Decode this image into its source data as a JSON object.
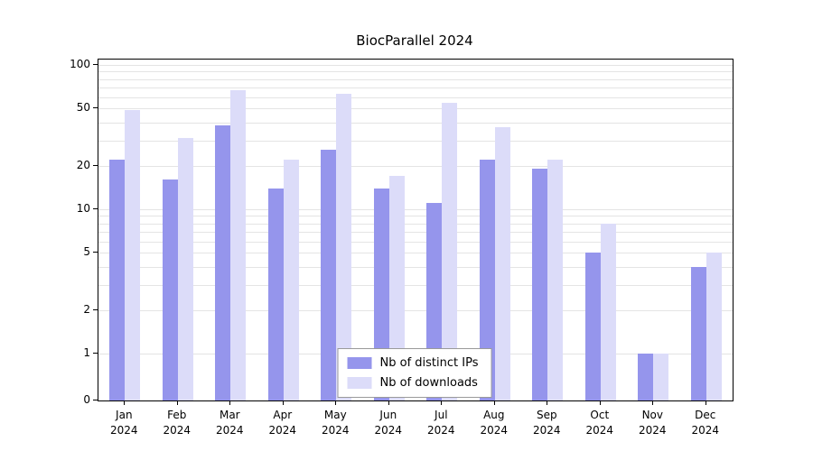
{
  "chart_data": {
    "type": "bar",
    "title": "BiocParallel 2024",
    "categories": [
      "Jan 2024",
      "Feb 2024",
      "Mar 2024",
      "Apr 2024",
      "May 2024",
      "Jun 2024",
      "Jul 2024",
      "Aug 2024",
      "Sep 2024",
      "Oct 2024",
      "Nov 2024",
      "Dec 2024"
    ],
    "series": [
      {
        "name": "Nb of distinct IPs",
        "color": "#9595ec",
        "values": [
          22,
          16,
          38,
          14,
          26,
          14,
          11,
          22,
          19,
          5,
          1,
          4
        ]
      },
      {
        "name": "Nb of downloads",
        "color": "#dcdcf9",
        "values": [
          49,
          31,
          67,
          22,
          63,
          17,
          55,
          37,
          22,
          8,
          1,
          5
        ]
      }
    ],
    "y_ticks": [
      0,
      1,
      2,
      5,
      10,
      20,
      50,
      100
    ],
    "y_minor_gridlines": [
      1,
      2,
      3,
      4,
      5,
      6,
      7,
      8,
      9,
      10,
      20,
      30,
      40,
      50,
      60,
      70,
      80,
      90,
      100
    ],
    "ylim": [
      0,
      100
    ],
    "y_scale": "log (pseudo-log with 0 baseline)",
    "grid": "horizontal",
    "legend_position": "bottom-center inside plot"
  },
  "colors": {
    "grid": "#e4e4e4",
    "axis": "#000000",
    "legend_border": "#9a9a9a",
    "background": "#ffffff"
  }
}
